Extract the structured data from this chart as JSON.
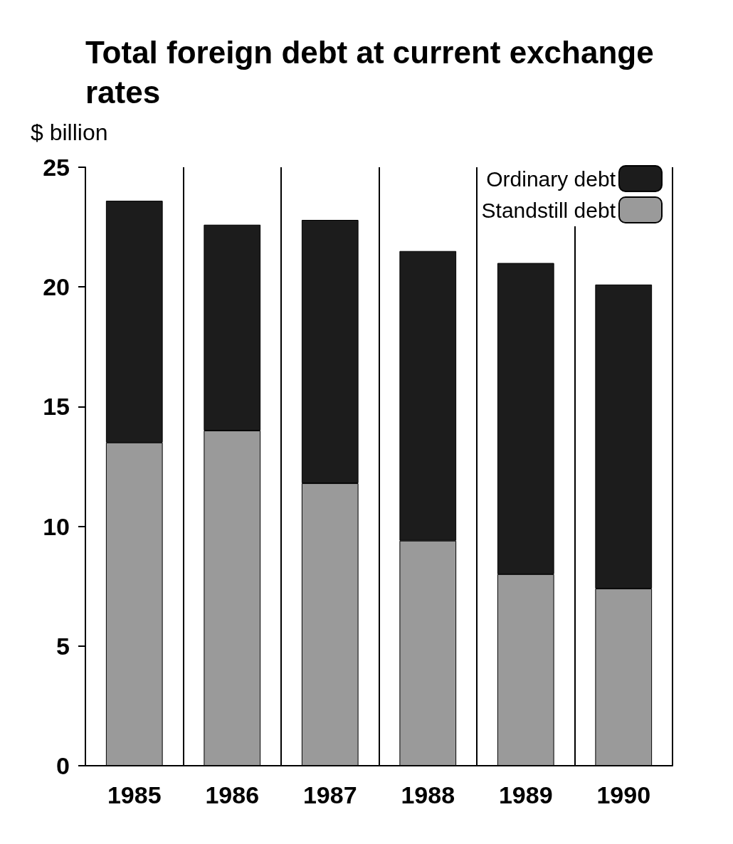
{
  "chart_data": {
    "type": "bar",
    "title": "Total foreign debt at current exchange rates",
    "ylabel": "$ billion",
    "categories": [
      "1985",
      "1986",
      "1987",
      "1988",
      "1989",
      "1990"
    ],
    "stacked": true,
    "series": [
      {
        "name": "Standstill debt",
        "color": "#9a9a9a",
        "values": [
          13.5,
          14.0,
          11.8,
          9.4,
          8.0,
          7.4
        ]
      },
      {
        "name": "Ordinary debt",
        "color": "#1c1c1c",
        "values": [
          10.1,
          8.6,
          11.0,
          12.1,
          13.0,
          12.7
        ]
      }
    ],
    "ylim": [
      0,
      25
    ],
    "yticks": [
      0,
      5,
      10,
      15,
      20,
      25
    ],
    "grid": "x",
    "legend": "top right"
  }
}
